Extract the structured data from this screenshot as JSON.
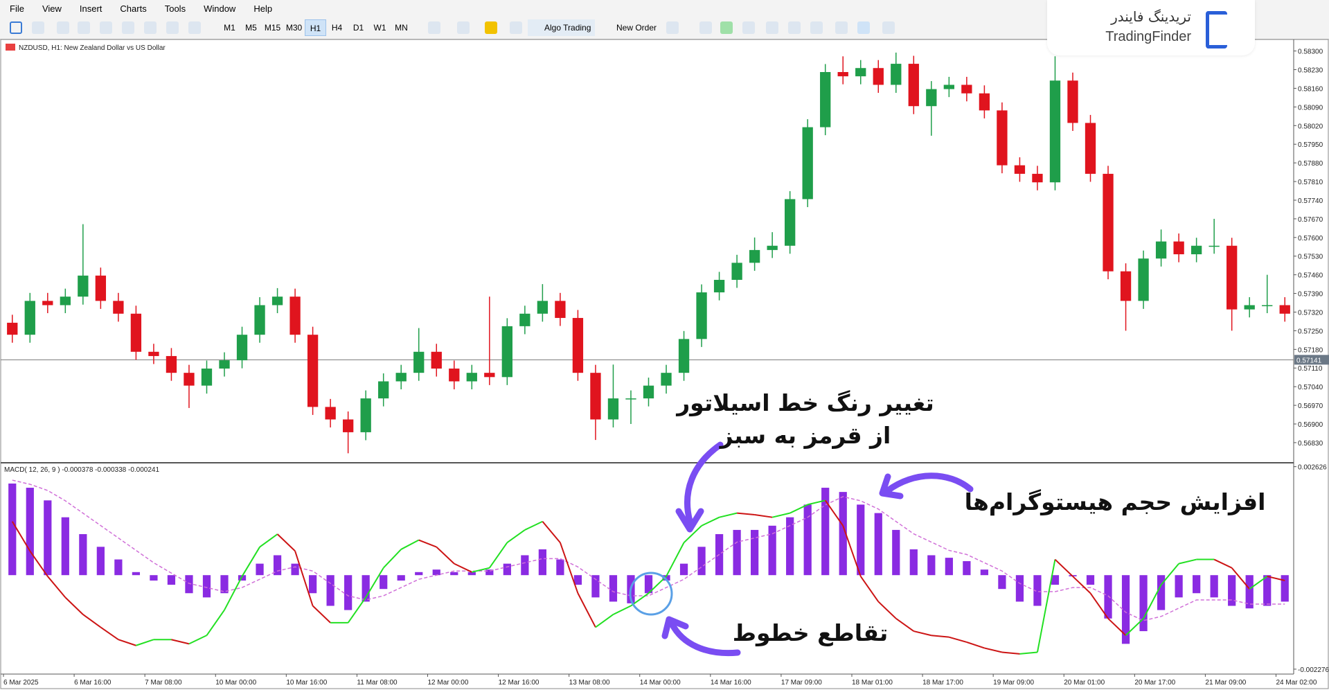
{
  "menu": [
    "File",
    "View",
    "Insert",
    "Charts",
    "Tools",
    "Window",
    "Help"
  ],
  "toolbar": {
    "timeframes": [
      "M1",
      "M5",
      "M15",
      "M30",
      "H1",
      "H4",
      "D1",
      "W1",
      "MN"
    ],
    "active_timeframe": 4,
    "buttons": [
      "Algo Trading",
      "New Order"
    ]
  },
  "logo": {
    "text_fa": "تریدینگ فایندر",
    "text_en": "TradingFinder"
  },
  "chart_data": [
    {
      "type": "candlestick",
      "title": "NZDUSD, H1:  New Zealand Dollar vs US Dollar",
      "categories": [
        "6 Mar 2025",
        null,
        null,
        null,
        "6 Mar 16:00",
        null,
        null,
        null,
        "7 Mar 08:00",
        null,
        null,
        null,
        "10 Mar 00:00",
        null,
        null,
        null,
        "10 Mar 16:00",
        null,
        null,
        null,
        "11 Mar 08:00",
        null,
        null,
        null,
        "12 Mar 00:00",
        null,
        null,
        null,
        "12 Mar 16:00",
        null,
        null,
        null,
        "13 Mar 08:00",
        null,
        null,
        null,
        "14 Mar 00:00",
        null,
        null,
        null,
        "14 Mar 16:00",
        null,
        null,
        null,
        "17 Mar 09:00",
        null,
        null,
        null,
        "18 Mar 01:00",
        null,
        null,
        null,
        "18 Mar 17:00",
        null,
        null,
        null,
        "19 Mar 09:00",
        null,
        null,
        null,
        "20 Mar 01:00",
        null,
        null,
        null,
        "20 Mar 17:00",
        null,
        null,
        null,
        "21 Mar 09:00",
        null,
        null,
        null,
        "24 Mar 02:00"
      ],
      "open": [
        0.5728,
        0.57235,
        0.57362,
        0.57346,
        0.57378,
        0.57457,
        0.57362,
        0.57314,
        0.57171,
        0.57155,
        0.57092,
        0.57044,
        0.57108,
        0.57139,
        0.57235,
        0.57346,
        0.57378,
        0.57235,
        0.56964,
        0.56917,
        0.56869,
        0.56996,
        0.5706,
        0.57092,
        0.57171,
        0.57108,
        0.5706,
        0.57092,
        0.57076,
        0.57267,
        0.57314,
        0.57362,
        0.57298,
        0.57092,
        0.56917,
        0.56996,
        0.56996,
        0.57044,
        0.57092,
        0.57219,
        0.57394,
        0.57441,
        0.57505,
        0.57553,
        0.57569,
        0.57744,
        0.58014,
        0.58221,
        0.58205,
        0.58236,
        0.58173,
        0.58252,
        0.58093,
        0.58157,
        0.58173,
        0.58141,
        0.58077,
        0.57871,
        0.57839,
        0.57807,
        0.58189,
        0.5803,
        0.57839,
        0.57473,
        0.57362,
        0.57521,
        0.57585,
        0.57537,
        0.57569,
        0.57569,
        0.5733,
        0.57346,
        0.57346
      ],
      "high": [
        0.5731,
        0.57392,
        0.57392,
        0.57408,
        0.5765,
        0.57487,
        0.57392,
        0.57344,
        0.57201,
        0.57185,
        0.57122,
        0.57138,
        0.57169,
        0.57265,
        0.57376,
        0.5741,
        0.57408,
        0.57265,
        0.56994,
        0.56947,
        0.57026,
        0.5709,
        0.57122,
        0.5726,
        0.57201,
        0.57138,
        0.57122,
        0.57378,
        0.57297,
        0.57344,
        0.57425,
        0.57392,
        0.57328,
        0.57122,
        0.57123,
        0.57026,
        0.57074,
        0.57122,
        0.57249,
        0.57424,
        0.57471,
        0.57535,
        0.576,
        0.5762,
        0.57774,
        0.58044,
        0.58251,
        0.5828,
        0.58266,
        0.58266,
        0.58294,
        0.58282,
        0.58187,
        0.58203,
        0.58203,
        0.58171,
        0.58107,
        0.57901,
        0.57869,
        0.5828,
        0.58219,
        0.5806,
        0.57869,
        0.57503,
        0.57551,
        0.5763,
        0.57615,
        0.57599,
        0.5767,
        0.57599,
        0.57376,
        0.5746,
        0.57376
      ],
      "low": [
        0.57205,
        0.57205,
        0.57316,
        0.57316,
        0.57348,
        0.57332,
        0.57284,
        0.57141,
        0.57125,
        0.57062,
        0.5696,
        0.57014,
        0.57078,
        0.57109,
        0.57205,
        0.57316,
        0.57205,
        0.56934,
        0.56887,
        0.5679,
        0.56839,
        0.56966,
        0.5703,
        0.57062,
        0.57078,
        0.5703,
        0.5703,
        0.57046,
        0.57046,
        0.57237,
        0.57284,
        0.57268,
        0.57062,
        0.5684,
        0.56887,
        0.569,
        0.56966,
        0.57014,
        0.57062,
        0.57189,
        0.57364,
        0.57411,
        0.57475,
        0.57523,
        0.57539,
        0.57714,
        0.57984,
        0.58175,
        0.58175,
        0.58143,
        0.58143,
        0.58063,
        0.57982,
        0.58127,
        0.58111,
        0.58047,
        0.57841,
        0.57809,
        0.57777,
        0.57777,
        0.58,
        0.57809,
        0.57443,
        0.5725,
        0.57332,
        0.57491,
        0.57507,
        0.57507,
        0.57539,
        0.5725,
        0.573,
        0.57316,
        0.57284
      ],
      "close": [
        0.57235,
        0.57362,
        0.57346,
        0.57378,
        0.57457,
        0.57362,
        0.57314,
        0.57171,
        0.57155,
        0.57092,
        0.57044,
        0.57108,
        0.57139,
        0.57235,
        0.57346,
        0.57378,
        0.57235,
        0.56964,
        0.56917,
        0.56869,
        0.56996,
        0.5706,
        0.57092,
        0.57171,
        0.57108,
        0.5706,
        0.57092,
        0.57076,
        0.57267,
        0.57314,
        0.57362,
        0.57298,
        0.57092,
        0.56917,
        0.56996,
        0.56996,
        0.57044,
        0.57092,
        0.57219,
        0.57394,
        0.57441,
        0.57505,
        0.57553,
        0.57569,
        0.57744,
        0.58014,
        0.58221,
        0.58205,
        0.58236,
        0.58173,
        0.58252,
        0.58093,
        0.58157,
        0.58173,
        0.58141,
        0.58077,
        0.57871,
        0.57839,
        0.57807,
        0.58189,
        0.5803,
        0.57839,
        0.57473,
        0.57362,
        0.57521,
        0.57585,
        0.57537,
        0.57569,
        0.57569,
        0.5733,
        0.57346,
        0.57346,
        0.57314
      ],
      "up_color": "#1f9e4a",
      "down_color": "#e0141e",
      "ylim": [
        0.56757,
        0.58338
      ],
      "yticks": [
        {
          "value": 0.583,
          "label": "0.58300"
        },
        {
          "value": 0.5823,
          "label": "0.58230"
        },
        {
          "value": 0.5816,
          "label": "0.58160"
        },
        {
          "value": 0.5809,
          "label": "0.58090"
        },
        {
          "value": 0.5802,
          "label": "0.58020"
        },
        {
          "value": 0.5795,
          "label": "0.57950"
        },
        {
          "value": 0.5788,
          "label": "0.57880"
        },
        {
          "value": 0.5781,
          "label": "0.57810"
        },
        {
          "value": 0.5774,
          "label": "0.57740"
        },
        {
          "value": 0.5767,
          "label": "0.57670"
        },
        {
          "value": 0.576,
          "label": "0.57600"
        },
        {
          "value": 0.5753,
          "label": "0.57530"
        },
        {
          "value": 0.5746,
          "label": "0.57460"
        },
        {
          "value": 0.5739,
          "label": "0.57390"
        },
        {
          "value": 0.5732,
          "label": "0.57320"
        },
        {
          "value": 0.5725,
          "label": "0.57250"
        },
        {
          "value": 0.5718,
          "label": "0.57180"
        },
        {
          "value": 0.5711,
          "label": "0.57110"
        },
        {
          "value": 0.5704,
          "label": "0.57040"
        },
        {
          "value": 0.5697,
          "label": "0.56970"
        },
        {
          "value": 0.569,
          "label": "0.56900"
        },
        {
          "value": 0.5683,
          "label": "0.56830"
        }
      ],
      "current_price": 0.57141
    },
    {
      "type": "macd",
      "title": "MACD( 12, 26, 9 ) -0.000378 -0.000338 -0.000241",
      "histogram": [
        0.002218,
        0.002116,
        0.00181,
        0.001401,
        0.000993,
        0.000686,
        0.00038,
        7.4e-05,
        -0.000131,
        -0.000233,
        -0.000437,
        -0.000539,
        -0.000437,
        -0.000131,
        0.000278,
        0.000482,
        0.000278,
        -0.000437,
        -0.000743,
        -0.000845,
        -0.000641,
        -0.000335,
        -0.000131,
        7.4e-05,
        0.000135,
        7.4e-05,
        7.4e-05,
        0.000135,
        0.000278,
        0.000482,
        0.000625,
        0.00038,
        -0.000233,
        -0.000539,
        -0.000641,
        -0.000682,
        -0.000437,
        -0.000131,
        0.000278,
        0.000686,
        0.000993,
        0.001095,
        0.001095,
        0.001197,
        0.001401,
        0.001708,
        0.002116,
        0.002014,
        0.001708,
        0.001503,
        0.001095,
        0.000625,
        0.000482,
        0.000421,
        0.000339,
        0.000135,
        -0.000335,
        -0.000641,
        -0.000743,
        -0.000233,
        -2.9e-05,
        -0.000233,
        -0.00105,
        -0.001663,
        -0.001356,
        -0.000845,
        -0.000539,
        -0.000437,
        -0.000539,
        -0.000743,
        -0.000805,
        -0.000743,
        -0.000641
      ],
      "line": [
        0.001299,
        0.000584,
        -2.9e-05,
        -0.000539,
        -0.000952,
        -0.001262,
        -0.00156,
        -0.001703,
        -0.00156,
        -0.00156,
        -0.001663,
        -0.001458,
        -0.000845,
        -2.9e-05,
        0.000682,
        0.000993,
        0.000584,
        -0.000743,
        -0.001152,
        -0.001152,
        -0.000539,
        0.000176,
        0.000625,
        0.00085,
        0.000682,
        0.000278,
        7.4e-05,
        0.000176,
        0.000788,
        0.001095,
        0.001299,
        0.000788,
        -0.000437,
        -0.001262,
        -0.000952,
        -0.000743,
        -0.000437,
        -2.9e-05,
        0.000788,
        0.001197,
        0.001401,
        0.001503,
        0.001462,
        0.001401,
        0.001503,
        0.001708,
        0.00181,
        0.001197,
        -2.9e-05,
        -0.000641,
        -0.00105,
        -0.001356,
        -0.00146,
        -0.0015,
        -0.001622,
        -0.001765,
        -0.001866,
        -0.001907,
        -0.001866,
        0.00038,
        -2.9e-05,
        -0.000437,
        -0.00105,
        -0.001458,
        -0.00105,
        -0.000233,
        0.000278,
        0.00038,
        0.00038,
        0.000176,
        -0.000335,
        -2.9e-05,
        -0.000131
      ],
      "signal": [
        0.0023,
        0.0022,
        0.00205,
        0.0018,
        0.0015,
        0.0012,
        0.0009,
        0.0006,
        0.0003,
        5e-05,
        -0.0002,
        -0.0003,
        -0.0004,
        -0.0003,
        -0.0001,
        0.0001,
        0.0002,
        0.0001,
        -0.0002,
        -0.0005,
        -0.0006,
        -0.0005,
        -0.0003,
        -0.0001,
        0,
        0.0001,
        0.0001,
        0.0001,
        0.0002,
        0.0003,
        0.0004,
        0.0004,
        0.0002,
        -0.0001,
        -0.0004,
        -0.0005,
        -0.0005,
        -0.0003,
        -0.0001,
        0.0002,
        0.0005,
        0.0008,
        0.0009,
        0.001,
        0.0012,
        0.0014,
        0.0017,
        0.0019,
        0.0018,
        0.0016,
        0.0013,
        0.001,
        0.0008,
        0.0006,
        0.0005,
        0.0003,
        0.0001,
        -0.0002,
        -0.0004,
        -0.0004,
        -0.0003,
        -0.0003,
        -0.0005,
        -0.0009,
        -0.0011,
        -0.001,
        -0.0008,
        -0.0006,
        -0.0006,
        -0.0006,
        -0.0007,
        -0.0007,
        -0.0007
      ],
      "histogram_color": "#8a2be2",
      "rising_color": "#22e022",
      "falling_color": "#cc1414",
      "signal_color": "#d070d8",
      "ylim": [
        -0.002378,
        0.002687
      ],
      "yticks": [
        0.002626,
        -0.002276
      ]
    }
  ],
  "annotations": [
    {
      "text": "تغییر رنگ خط اسیلاتور"
    },
    {
      "text": "از قرمز به سبز"
    },
    {
      "text": "افزایش حجم هیستوگرام‌ها"
    },
    {
      "text": "تقاطع خطوط"
    }
  ]
}
